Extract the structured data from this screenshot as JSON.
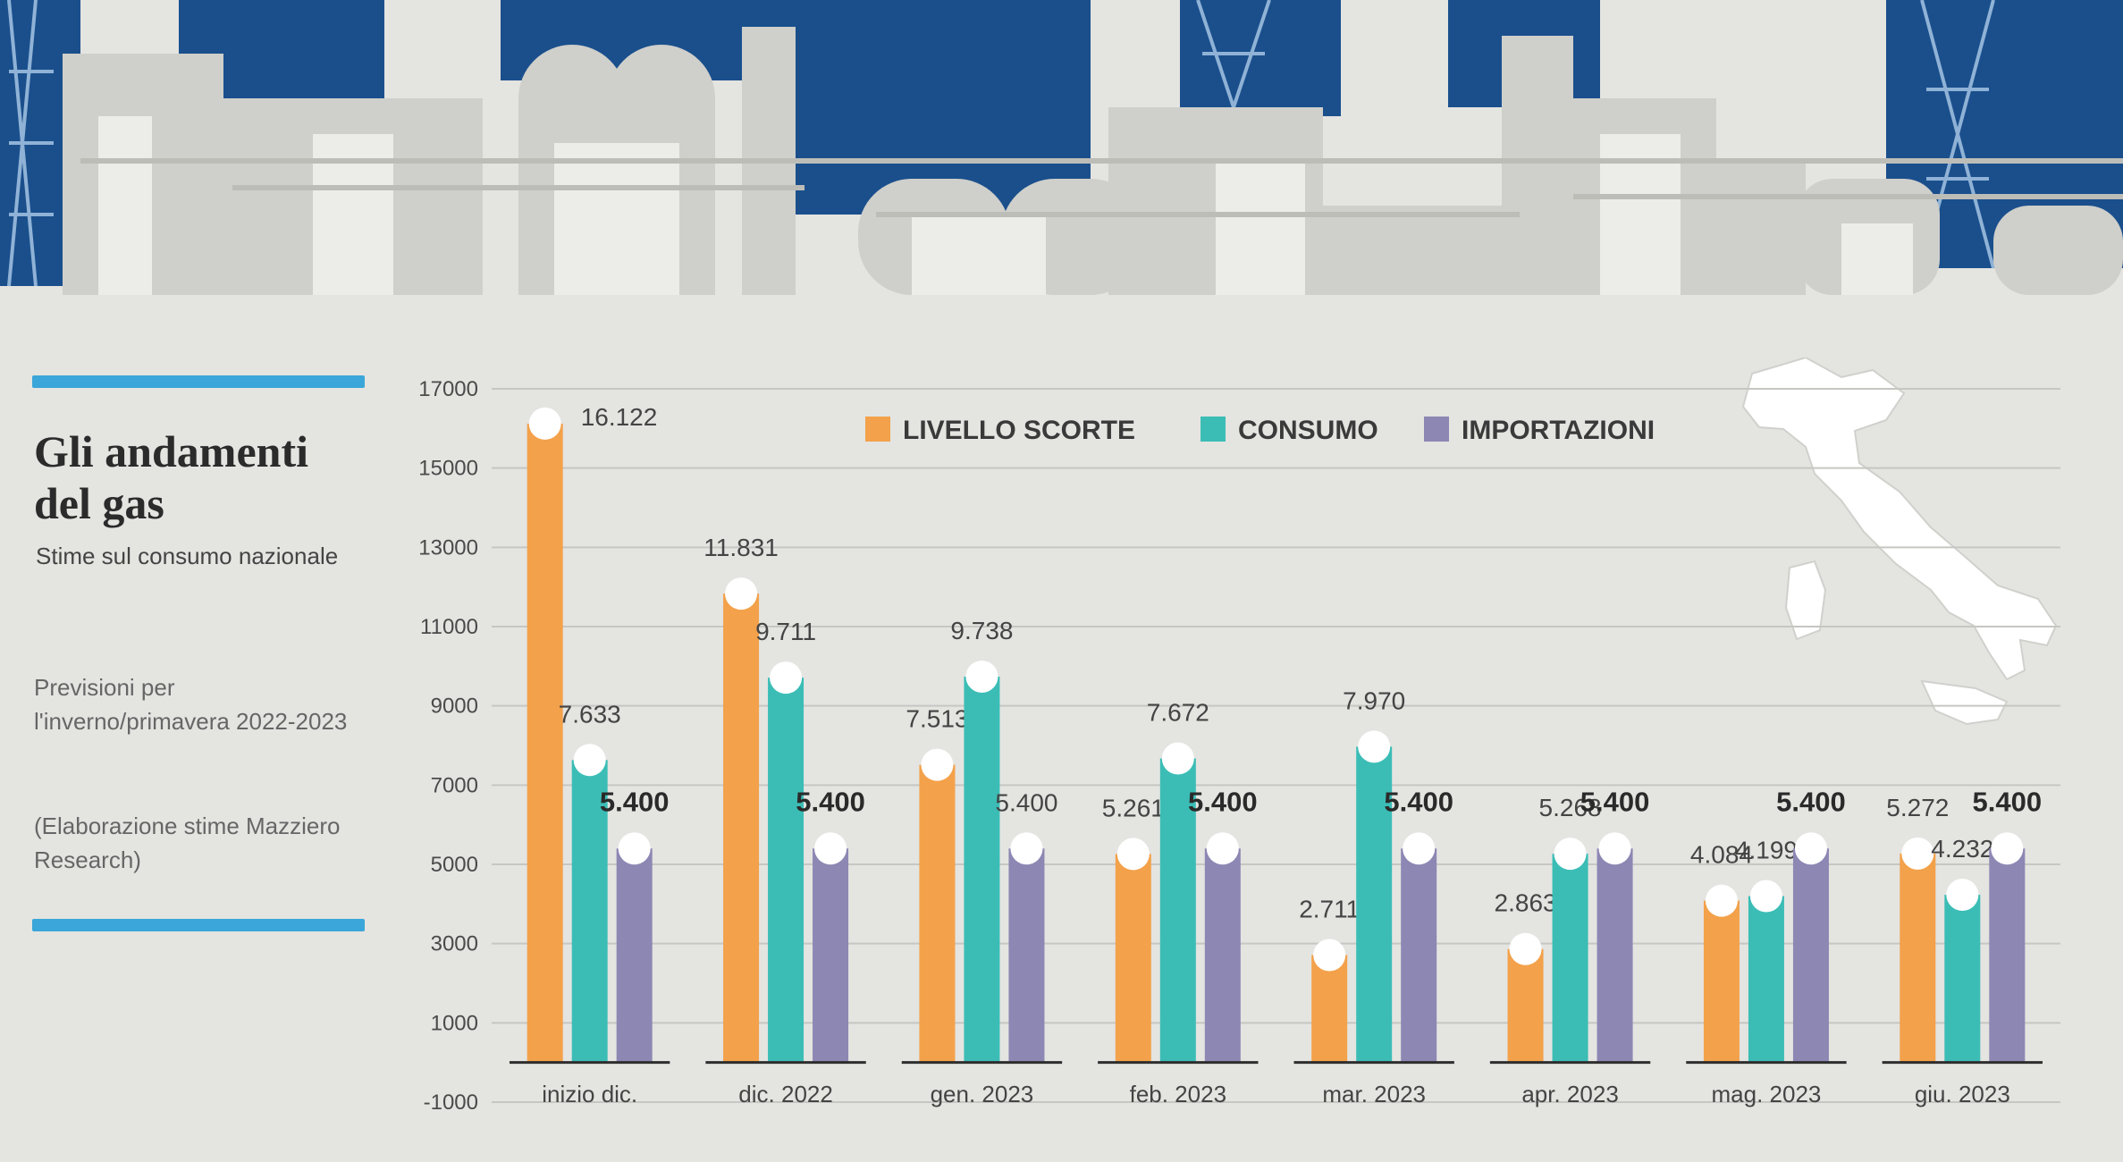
{
  "header": {
    "title": "Gli andamenti del gas",
    "subtitle": "Stime sul consumo nazionale",
    "note": "Previsioni per l'inverno/primavera 2022-2023",
    "source": "(Elaborazione stime Mazziero Research)"
  },
  "colors": {
    "livello_scorte": "#f3a14a",
    "consumo": "#3bbdb6",
    "importazioni": "#8c87b3",
    "accent": "#3aa6d9",
    "banner_blue": "#1a4f8c"
  },
  "chart_data": {
    "type": "bar",
    "title": "Gli andamenti del gas",
    "subtitle": "Stime sul consumo nazionale",
    "categories": [
      "inizio dic.",
      "dic. 2022",
      "gen. 2023",
      "feb. 2023",
      "mar. 2023",
      "apr. 2023",
      "mag. 2023",
      "giu. 2023"
    ],
    "series": [
      {
        "name": "LIVELLO SCORTE",
        "values": [
          16122,
          11831,
          7513,
          5261,
          2711,
          2863,
          4084,
          5272
        ],
        "labels": [
          "16.122",
          "11.831",
          "7.513",
          "5.261",
          "2.711",
          "2.863",
          "4.084",
          "5.272"
        ]
      },
      {
        "name": "CONSUMO",
        "values": [
          7633,
          9711,
          9738,
          7672,
          7970,
          5268,
          4199,
          4232
        ],
        "labels": [
          "7.633",
          "9.711",
          "9.738",
          "7.672",
          "7.970",
          "5.268",
          "4.199",
          "4.232"
        ]
      },
      {
        "name": "IMPORTAZIONI",
        "values": [
          5400,
          5400,
          5400,
          5400,
          5400,
          5400,
          5400,
          5400
        ],
        "labels": [
          "5.400",
          "5.400",
          "5.400",
          "5.400",
          "5.400",
          "5.400",
          "5.400",
          "5.400"
        ]
      }
    ],
    "y_ticks": [
      -1000,
      1000,
      3000,
      5000,
      7000,
      9000,
      11000,
      13000,
      15000,
      17000
    ],
    "ylim": [
      -1000,
      17000
    ],
    "xlabel": "",
    "ylabel": "",
    "grid": true,
    "legend_position": "top-center"
  }
}
